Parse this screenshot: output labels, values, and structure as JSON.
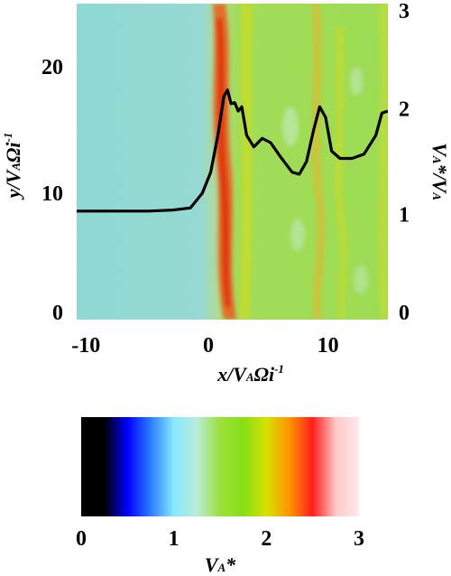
{
  "chart_data": [
    {
      "type": "heatmap",
      "xlabel": "x/VAΩi-1",
      "ylabel_left": "y/VAΩi-1",
      "ylabel_right": "VA*/VA",
      "xlim": [
        -11,
        15
      ],
      "ylim_left": [
        0,
        25
      ],
      "ylim_right": [
        0,
        3
      ],
      "x_ticks": [
        -10,
        0,
        10
      ],
      "y_ticks_left": [
        0,
        10,
        20
      ],
      "y_ticks_right": [
        0,
        1,
        2,
        3
      ],
      "heatmap_description_colors": {
        "upstream": "#88dccc",
        "downstream": "#98e030",
        "ridge": "#e83010"
      },
      "series": [
        {
          "x": [
            -11,
            -9,
            -7,
            -5,
            -3,
            -1.5,
            -0.5,
            0.2,
            0.8,
            1.3,
            1.6,
            1.9,
            2.2,
            2.5,
            2.8,
            3.2,
            3.8,
            4.5,
            5.2,
            6.0,
            7.0,
            7.6,
            8.2,
            8.8,
            9.3,
            9.8,
            10.3,
            11.0,
            12.0,
            13.0,
            14.0,
            14.5,
            15.0
          ],
          "y": [
            1.03,
            1.03,
            1.03,
            1.03,
            1.04,
            1.06,
            1.2,
            1.4,
            1.75,
            2.12,
            2.18,
            2.05,
            2.06,
            1.98,
            2.02,
            1.75,
            1.64,
            1.72,
            1.68,
            1.55,
            1.4,
            1.38,
            1.5,
            1.8,
            2.02,
            1.92,
            1.6,
            1.53,
            1.53,
            1.57,
            1.75,
            1.96,
            1.98
          ]
        }
      ]
    },
    {
      "type": "colorbar",
      "xlabel": "VA*",
      "range": [
        0,
        3
      ],
      "ticks": [
        0,
        1,
        2,
        3
      ],
      "stops": [
        "#000000",
        "#000000",
        "#0000ff",
        "#2a7cff",
        "#88e8ff",
        "#b8ecd8",
        "#9be03a",
        "#86df16",
        "#d8e000",
        "#ff9400",
        "#ff1e1e",
        "#ffc8c8",
        "#ffe8ee"
      ]
    }
  ]
}
